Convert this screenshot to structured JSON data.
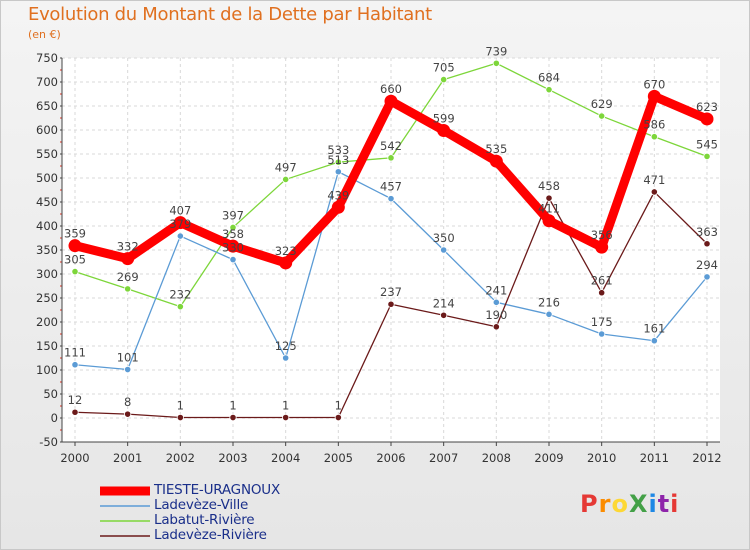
{
  "title": "Evolution du Montant de la Dette par Habitant",
  "unit": "(en €)",
  "logo": {
    "text": "ProXiti",
    "colors": [
      "#e53935",
      "#fb8c00",
      "#fdd835",
      "#43a047",
      "#1e88e5",
      "#8e24aa",
      "#e53935"
    ]
  },
  "chart_data": {
    "type": "line",
    "title": "Evolution du Montant de la Dette par Habitant",
    "ylabel": "(en €)",
    "x": [
      "2000",
      "2001",
      "2002",
      "2003",
      "2004",
      "2005",
      "2006",
      "2007",
      "2008",
      "2009",
      "2010",
      "2011",
      "2012"
    ],
    "ylim": [
      -50,
      750
    ],
    "yticks": [
      -50,
      0,
      50,
      100,
      150,
      200,
      250,
      300,
      350,
      400,
      450,
      500,
      550,
      600,
      650,
      700,
      750
    ],
    "grid": true,
    "legend_position": "bottom-left",
    "series": [
      {
        "name": "TIESTE-URAGNOUX",
        "color": "#ff0000",
        "values": [
          359,
          332,
          407,
          358,
          323,
          439,
          660,
          599,
          535,
          411,
          356,
          670,
          623
        ],
        "labels": [
          "359",
          "332",
          "407",
          "358",
          "323",
          "439",
          "660",
          "599",
          "535",
          "411",
          "356",
          "670",
          "623"
        ]
      },
      {
        "name": "Ladevèze-Ville",
        "color": "#5b9bd5",
        "values": [
          111,
          101,
          379,
          330,
          125,
          513,
          457,
          350,
          241,
          216,
          175,
          161,
          294
        ],
        "labels": [
          "111",
          "101",
          "379",
          "330",
          "125",
          "513",
          "457",
          "350",
          "241",
          "216",
          "175",
          "161",
          "294"
        ]
      },
      {
        "name": "Labatut-Rivière",
        "color": "#7dd63a",
        "values": [
          305,
          269,
          232,
          397,
          497,
          533,
          542,
          705,
          739,
          684,
          629,
          586,
          545
        ],
        "labels": [
          "305",
          "269",
          "232",
          "397",
          "497",
          "533",
          "542",
          "705",
          "739",
          "684",
          "629",
          "586",
          "545"
        ]
      },
      {
        "name": "Ladevèze-Rivière",
        "color": "#6b1a1a",
        "values": [
          12,
          8,
          1,
          1,
          1,
          1,
          237,
          214,
          190,
          458,
          261,
          471,
          363
        ],
        "labels": [
          "12",
          "8",
          "1",
          "1",
          "1",
          "1",
          "237",
          "214",
          "190",
          "458",
          "261",
          "471",
          "363"
        ]
      }
    ]
  }
}
